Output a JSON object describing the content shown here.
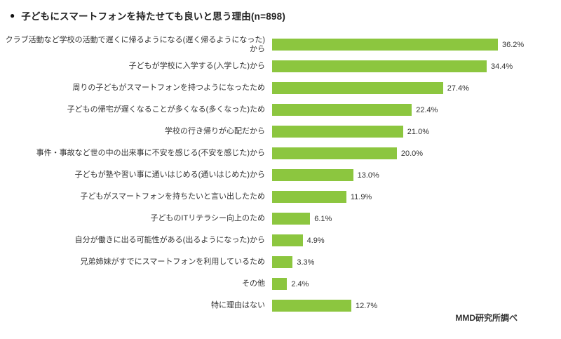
{
  "title": "子どもにスマートフォンを持たせても良いと思う理由(n=898)",
  "bullet": "●",
  "source": "MMD研究所調べ",
  "chart_data": {
    "type": "bar",
    "orientation": "horizontal",
    "title": "子どもにスマートフォンを持たせても良いと思う理由",
    "n": 898,
    "bar_color": "#8CC63F",
    "unit": "%",
    "xlim": [
      0,
      40
    ],
    "grid": false,
    "legend": "none",
    "categories": [
      "クラブ活動など学校の活動で遅くに帰るようになる(遅く帰るようになった)から",
      "子どもが学校に入学する(入学した)から",
      "周りの子どもがスマートフォンを持つようになったため",
      "子どもの帰宅が遅くなることが多くなる(多くなった)ため",
      "学校の行き帰りが心配だから",
      "事件・事故など世の中の出来事に不安を感じる(不安を感じた)から",
      "子どもが塾や習い事に通いはじめる(通いはじめた)から",
      "子どもがスマートフォンを持ちたいと言い出したため",
      "子どものITリテラシー向上のため",
      "自分が働きに出る可能性がある(出るようになった)から",
      "兄弟姉妹がすでにスマートフォンを利用しているため",
      "その他",
      "特に理由はない"
    ],
    "values": [
      36.2,
      34.4,
      27.4,
      22.4,
      21.0,
      20.0,
      13.0,
      11.9,
      6.1,
      4.9,
      3.3,
      2.4,
      12.7
    ],
    "labels": [
      "36.2%",
      "34.4%",
      "27.4%",
      "22.4%",
      "21.0%",
      "20.0%",
      "13.0%",
      "11.9%",
      "6.1%",
      "4.9%",
      "3.3%",
      "2.4%",
      "12.7%"
    ]
  }
}
